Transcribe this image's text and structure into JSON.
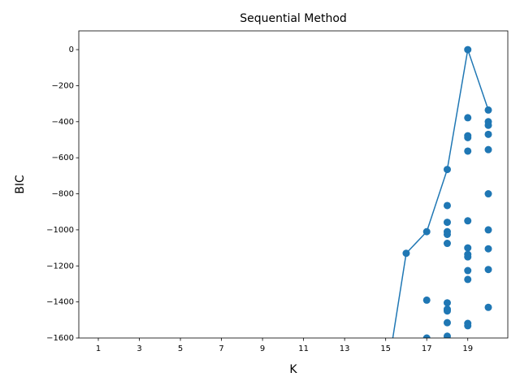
{
  "chart_data": {
    "type": "line-scatter",
    "title": "Sequential Method",
    "x_label": "K",
    "y_label": "BIC",
    "xlim": [
      0.05,
      20.95
    ],
    "xticks": [
      1,
      3,
      5,
      7,
      9,
      11,
      13,
      15,
      17,
      19
    ],
    "ylim": [
      -1600,
      104
    ],
    "yticks": [
      {
        "value": 0,
        "label": "0"
      },
      {
        "value": -200,
        "label": "−200"
      },
      {
        "value": -400,
        "label": "−400"
      },
      {
        "value": -600,
        "label": "−600"
      },
      {
        "value": -800,
        "label": "−800"
      },
      {
        "value": -1000,
        "label": "−1000"
      },
      {
        "value": -1200,
        "label": "−1200"
      },
      {
        "value": -1400,
        "label": "−1400"
      },
      {
        "value": -1600,
        "label": "−1600"
      }
    ],
    "series": [
      {
        "kind": "line",
        "color": "#1f77b4",
        "x": [
          15,
          16,
          17,
          18,
          19,
          20
        ],
        "values": [
          -1850,
          -1130,
          -1010,
          -665,
          0,
          -335
        ]
      },
      {
        "kind": "scatter",
        "color": "#1f77b4",
        "x": [
          16,
          17,
          17,
          17,
          18,
          18,
          18,
          18,
          18,
          18,
          18,
          18,
          18,
          18,
          18,
          19,
          19,
          19,
          19,
          19,
          19,
          19,
          19,
          19,
          19,
          19,
          19,
          19,
          20,
          20,
          20,
          20,
          20,
          20,
          20,
          20,
          20,
          20
        ],
        "values": [
          -1130,
          -1010,
          -1390,
          -1600,
          -665,
          -865,
          -958,
          -1010,
          -1025,
          -1075,
          -1405,
          -1440,
          -1450,
          -1515,
          -1590,
          0,
          -378,
          -478,
          -488,
          -563,
          -950,
          -1100,
          -1136,
          -1150,
          -1226,
          -1275,
          -1519,
          -1532,
          -335,
          -400,
          -420,
          -470,
          -555,
          -800,
          -1000,
          -1105,
          -1220,
          -1430
        ]
      }
    ]
  }
}
